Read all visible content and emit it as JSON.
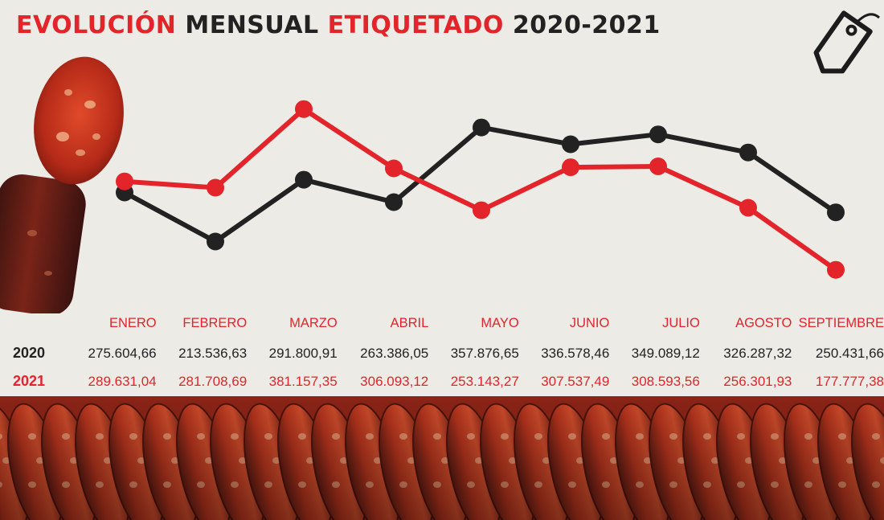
{
  "title": {
    "part1": "EVOLUCIÓN",
    "part2": "MENSUAL",
    "part3": "ETIQUETADO",
    "part4": "2020-2021"
  },
  "colors": {
    "series_2020": "#222222",
    "series_2021": "#e3242b",
    "background": "#ecebe6"
  },
  "icons": [
    "tag-icon"
  ],
  "chart_data": {
    "type": "line",
    "categories": [
      "ENERO",
      "FEBRERO",
      "MARZO",
      "ABRIL",
      "MAYO",
      "JUNIO",
      "JULIO",
      "AGOSTO",
      "SEPTIEMBRE"
    ],
    "series": [
      {
        "name": "2020",
        "color": "#222222",
        "values": [
          275604.66,
          213536.63,
          291800.91,
          263386.05,
          357876.65,
          336578.46,
          349089.12,
          326287.32,
          250431.66
        ],
        "labels": [
          "275.604,66",
          "213.536,63",
          "291.800,91",
          "263.386,05",
          "357.876,65",
          "336.578,46",
          "349.089,12",
          "326.287,32",
          "250.431,66"
        ]
      },
      {
        "name": "2021",
        "color": "#e3242b",
        "values": [
          289631.04,
          281708.69,
          381157.35,
          306093.12,
          253143.27,
          307537.49,
          308593.56,
          256301.93,
          177777.38
        ],
        "labels": [
          "289.631,04",
          "281.708,69",
          "381.157,35",
          "306.093,12",
          "253.143,27",
          "307.537,49",
          "308.593,56",
          "256.301,93",
          "177.777,38"
        ]
      }
    ],
    "grid": false
  }
}
